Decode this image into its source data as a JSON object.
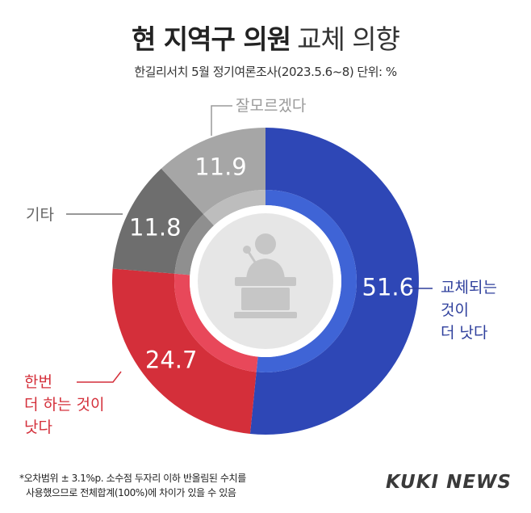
{
  "title": {
    "bold": "현 지역구 의원",
    "light": "교체 의향"
  },
  "subtitle": "한길리서치 5월 정기여론조사(2023.5.6~8) 단위: %",
  "colors": {
    "replace": "#2e47b6",
    "replace_inner": "#3f64d6",
    "again": "#d42f3a",
    "again_inner": "#e8485a",
    "other": "#6e6e6e",
    "other_inner": "#8f8f8f",
    "dontknow": "#a6a6a6",
    "dontknow_inner": "#bdbdbd",
    "center": "#e6e6e6",
    "icon": "#c6c6c6"
  },
  "chart_data": {
    "type": "pie",
    "style": "donut",
    "slices": [
      {
        "label": "교체되는 것이 더 낫다",
        "value": 51.6,
        "color": "#2e47b6"
      },
      {
        "label": "한번 더 하는 것이 낫다",
        "value": 24.7,
        "color": "#d42f3a"
      },
      {
        "label": "기타",
        "value": 11.8,
        "color": "#6e6e6e"
      },
      {
        "label": "잘모르겠다",
        "value": 11.9,
        "color": "#a6a6a6"
      }
    ],
    "value_labels": [
      "51.6",
      "24.7",
      "11.8",
      "11.9"
    ],
    "callouts": {
      "replace": [
        "교체되는",
        "것이",
        "더 낫다"
      ],
      "again": [
        "한번",
        "더 하는 것이",
        "낫다"
      ],
      "other": [
        "기타"
      ],
      "dontknow": [
        "잘모르겠다"
      ]
    },
    "center_icon": "podium-speaker-icon"
  },
  "footnote": [
    "*오차범위 ± 3.1%p. 소수점 두자리 이하 반올림된 수치를",
    "사용했으므로 전체합계(100%)에 차이가 있을 수 있음"
  ],
  "brand": "KUKI NEWS"
}
